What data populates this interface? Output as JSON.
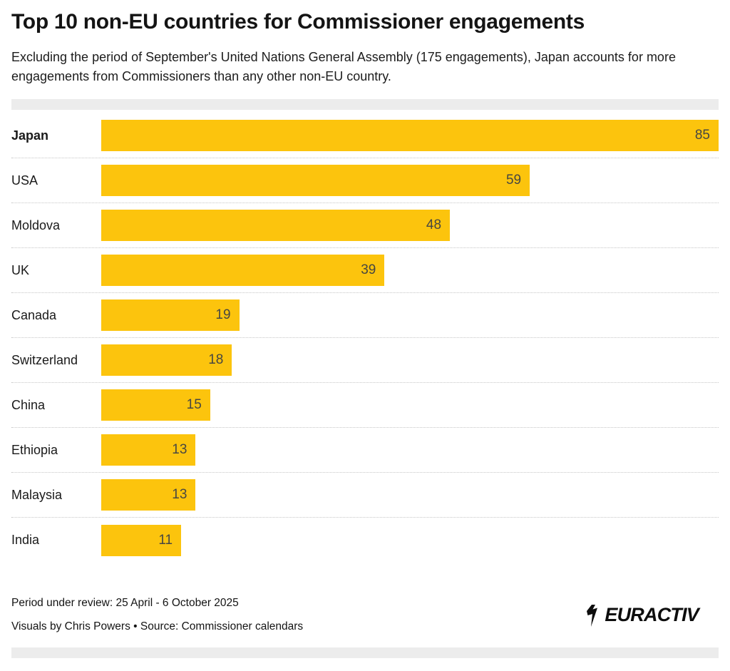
{
  "header": {
    "title": "Top 10 non-EU countries for Commissioner engagements",
    "subtitle": "Excluding the period of September's United Nations General Assembly (175 engagements), Japan accounts for more engagements from Commissioners than any other non-EU country."
  },
  "chart_data": {
    "type": "bar",
    "orientation": "horizontal",
    "title": "Top 10 non-EU countries for Commissioner engagements",
    "categories": [
      "Japan",
      "USA",
      "Moldova",
      "UK",
      "Canada",
      "Switzerland",
      "China",
      "Ethiopia",
      "Malaysia",
      "India"
    ],
    "values": [
      85,
      59,
      48,
      39,
      19,
      18,
      15,
      13,
      13,
      11
    ],
    "highlight_category": "Japan",
    "xlabel": "",
    "ylabel": "",
    "xlim": [
      0,
      85
    ],
    "legend": false,
    "gridlines": "dotted horizontal separators between rows",
    "value_labels": "inside bar, right-aligned",
    "bar_color": "#fcc40d"
  },
  "footer": {
    "period": "Period under review: 25 April - 6 October 2025",
    "credits": "Visuals by Chris Powers • Source: Commissioner calendars",
    "logo_text": "EURACTIV",
    "logo_icon": "euractiv-bolt-icon"
  },
  "colors": {
    "bar": "#fcc40d",
    "value_text": "#474742",
    "strip": "#ececec",
    "separator": "#c6c6c6",
    "text": "#1a1a1a",
    "background": "#ffffff"
  }
}
